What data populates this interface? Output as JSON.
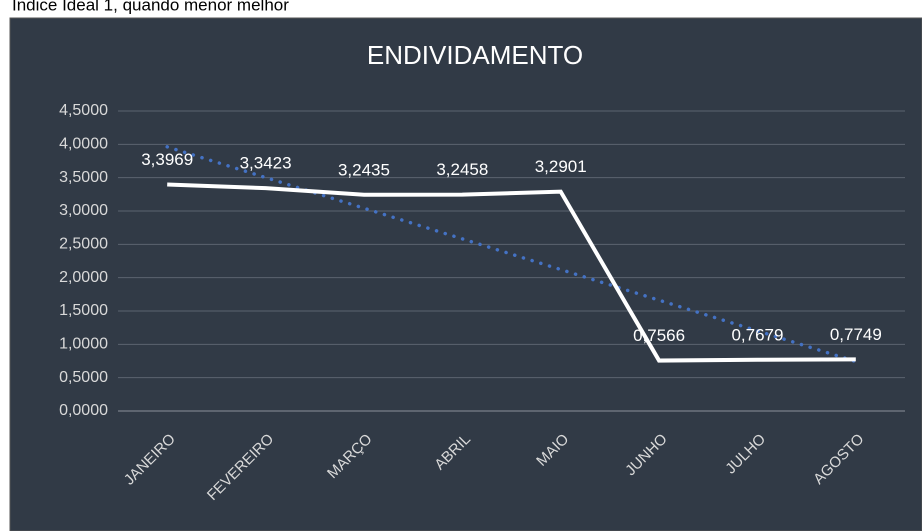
{
  "note_text": "Índice Ideal 1, quando menor melhor",
  "chart_data": {
    "type": "line",
    "title": "ENDIVIDAMENTO",
    "categories": [
      "JANEIRO",
      "FEVEREIRO",
      "MARÇO",
      "ABRIL",
      "MAIO",
      "JUNHO",
      "JULHO",
      "AGOSTO"
    ],
    "values": [
      3.3969,
      3.3423,
      3.2435,
      3.2458,
      3.2901,
      0.7566,
      0.7679,
      0.7749
    ],
    "value_labels": [
      "3,3969",
      "3,3423",
      "3,2435",
      "3,2458",
      "3,2901",
      "0,7566",
      "0,7679",
      "0,7749"
    ],
    "color": "#ffffff",
    "trendline": "linear",
    "trendline_color": "#4472c4",
    "ylim": [
      0,
      4.5
    ],
    "yticks": [
      {
        "value": 0,
        "label": "0,0000"
      },
      {
        "value": 0.5,
        "label": "0,5000"
      },
      {
        "value": 1,
        "label": "1,0000"
      },
      {
        "value": 1.5,
        "label": "1,5000"
      },
      {
        "value": 2,
        "label": "2,0000"
      },
      {
        "value": 2.5,
        "label": "2,5000"
      },
      {
        "value": 3,
        "label": "3,0000"
      },
      {
        "value": 3.5,
        "label": "3,5000"
      },
      {
        "value": 4,
        "label": "4,0000"
      },
      {
        "value": 4.5,
        "label": "4,5000"
      }
    ],
    "grid": true
  }
}
